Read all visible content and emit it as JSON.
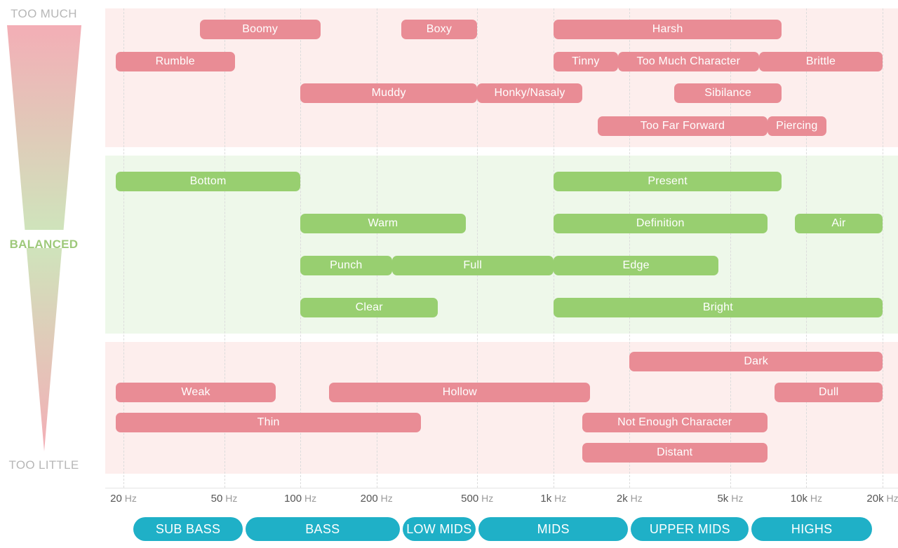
{
  "scale": {
    "top_label": "TOO MUCH",
    "mid_label": "BALANCED",
    "bottom_label": "TOO LITTLE"
  },
  "colors": {
    "too_much": "#e98c95",
    "balanced": "#98cf70",
    "ranges": "#1fb0c7"
  },
  "frequency_ticks": [
    {
      "number": "20",
      "unit": "Hz"
    },
    {
      "number": "50",
      "unit": "Hz"
    },
    {
      "number": "100",
      "unit": "Hz"
    },
    {
      "number": "200",
      "unit": "Hz"
    },
    {
      "number": "500",
      "unit": "Hz"
    },
    {
      "number": "1k",
      "unit": "Hz"
    },
    {
      "number": "2k",
      "unit": "Hz"
    },
    {
      "number": "5k",
      "unit": "Hz"
    },
    {
      "number": "10k",
      "unit": "Hz"
    },
    {
      "number": "20k",
      "unit": "Hz"
    }
  ],
  "ranges": [
    {
      "label": "SUB BASS",
      "from_hz": 20,
      "to_hz": 60
    },
    {
      "label": "BASS",
      "from_hz": 60,
      "to_hz": 250
    },
    {
      "label": "LOW MIDS",
      "from_hz": 250,
      "to_hz": 500
    },
    {
      "label": "MIDS",
      "from_hz": 500,
      "to_hz": 2000
    },
    {
      "label": "UPPER MIDS",
      "from_hz": 2000,
      "to_hz": 6000
    },
    {
      "label": "HIGHS",
      "from_hz": 6000,
      "to_hz": 20000
    }
  ],
  "terms": {
    "too_much": [
      {
        "label": "Boomy",
        "from_hz": 40,
        "to_hz": 120,
        "row": 1
      },
      {
        "label": "Boxy",
        "from_hz": 250,
        "to_hz": 500,
        "row": 1
      },
      {
        "label": "Harsh",
        "from_hz": 1000,
        "to_hz": 8000,
        "row": 1
      },
      {
        "label": "Rumble",
        "from_hz": 18,
        "to_hz": 55,
        "row": 2
      },
      {
        "label": "Tinny",
        "from_hz": 1000,
        "to_hz": 1800,
        "row": 2
      },
      {
        "label": "Too Much Character",
        "from_hz": 1800,
        "to_hz": 6500,
        "row": 2
      },
      {
        "label": "Brittle",
        "from_hz": 6500,
        "to_hz": 20000,
        "row": 2
      },
      {
        "label": "Muddy",
        "from_hz": 100,
        "to_hz": 500,
        "row": 3
      },
      {
        "label": "Honky/Nasaly",
        "from_hz": 500,
        "to_hz": 1300,
        "row": 3
      },
      {
        "label": "Sibilance",
        "from_hz": 3000,
        "to_hz": 8000,
        "row": 3
      },
      {
        "label": "Too Far Forward",
        "from_hz": 1500,
        "to_hz": 7000,
        "row": 4
      },
      {
        "label": "Piercing",
        "from_hz": 7000,
        "to_hz": 12000,
        "row": 4
      }
    ],
    "balanced": [
      {
        "label": "Bottom",
        "from_hz": 18,
        "to_hz": 100,
        "row": 1
      },
      {
        "label": "Present",
        "from_hz": 1000,
        "to_hz": 8000,
        "row": 1
      },
      {
        "label": "Warm",
        "from_hz": 100,
        "to_hz": 450,
        "row": 2
      },
      {
        "label": "Definition",
        "from_hz": 1000,
        "to_hz": 7000,
        "row": 2
      },
      {
        "label": "Air",
        "from_hz": 9000,
        "to_hz": 20000,
        "row": 2
      },
      {
        "label": "Punch",
        "from_hz": 100,
        "to_hz": 230,
        "row": 3
      },
      {
        "label": "Full",
        "from_hz": 230,
        "to_hz": 1000,
        "row": 3
      },
      {
        "label": "Edge",
        "from_hz": 1000,
        "to_hz": 4500,
        "row": 3
      },
      {
        "label": "Clear",
        "from_hz": 100,
        "to_hz": 350,
        "row": 4
      },
      {
        "label": "Bright",
        "from_hz": 1000,
        "to_hz": 20000,
        "row": 4
      }
    ],
    "too_little": [
      {
        "label": "Dark",
        "from_hz": 2000,
        "to_hz": 20000,
        "row": 1
      },
      {
        "label": "Weak",
        "from_hz": 18,
        "to_hz": 80,
        "row": 2
      },
      {
        "label": "Hollow",
        "from_hz": 130,
        "to_hz": 1400,
        "row": 2
      },
      {
        "label": "Dull",
        "from_hz": 7500,
        "to_hz": 20000,
        "row": 2
      },
      {
        "label": "Thin",
        "from_hz": 18,
        "to_hz": 300,
        "row": 3
      },
      {
        "label": "Not Enough Character",
        "from_hz": 1300,
        "to_hz": 7000,
        "row": 3
      },
      {
        "label": "Distant",
        "from_hz": 1300,
        "to_hz": 7000,
        "row": 4
      }
    ]
  }
}
